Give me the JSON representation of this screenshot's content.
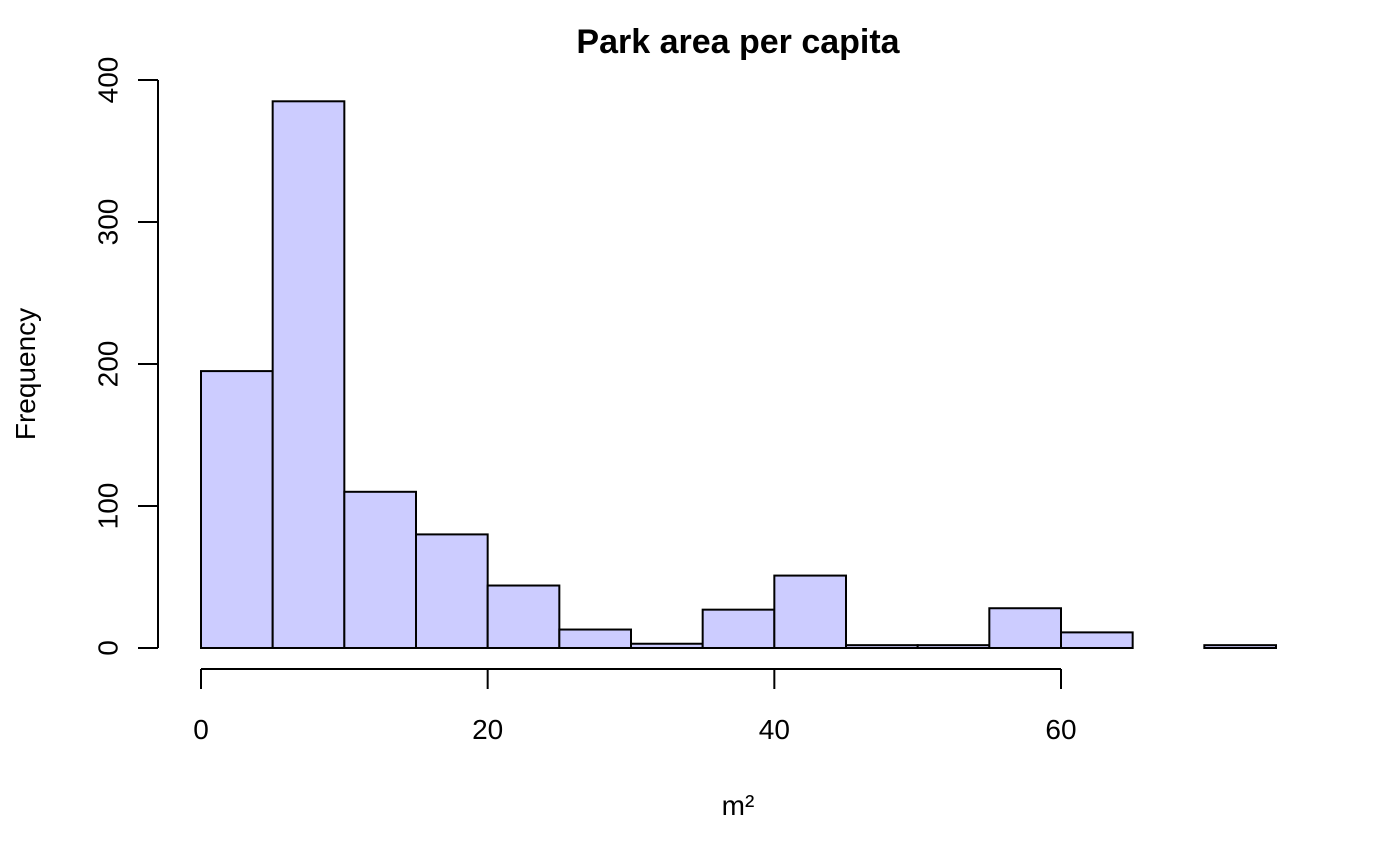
{
  "chart_data": {
    "type": "bar",
    "title": "Park area per capita",
    "xlabel": "m²",
    "ylabel": "Frequency",
    "bin_edges": [
      0,
      5,
      10,
      15,
      20,
      25,
      30,
      35,
      40,
      45,
      50,
      55,
      60,
      65,
      70,
      75
    ],
    "values": [
      195,
      385,
      110,
      80,
      44,
      13,
      3,
      27,
      51,
      2,
      2,
      28,
      11,
      0,
      2
    ],
    "x_ticks": [
      0,
      20,
      40,
      60
    ],
    "y_ticks": [
      0,
      100,
      200,
      300,
      400
    ],
    "xlim": [
      0,
      75
    ],
    "ylim": [
      0,
      400
    ],
    "bar_color": "#CCCCFF",
    "grid": false,
    "legend": "none"
  }
}
